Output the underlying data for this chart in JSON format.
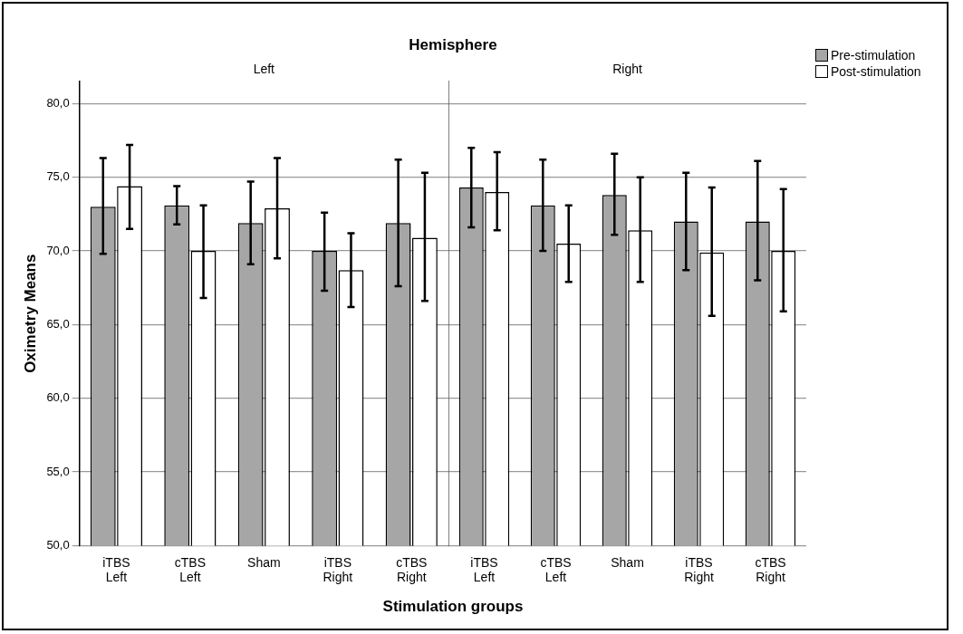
{
  "chart_data": [
    {
      "type": "bar",
      "title": "Hemisphere",
      "subtitle": "Left",
      "xlabel": "Stimulation groups",
      "ylabel": "Oximetry Means",
      "categories": [
        "iTBS Left",
        "cTBS Left",
        "Sham",
        "iTBS Right",
        "cTBS Right"
      ],
      "series": [
        {
          "color": "#a6a6a6",
          "values": [
            73.0,
            73.1,
            71.9,
            70.0,
            71.9
          ],
          "errors": [
            [
              69.8,
              76.3
            ],
            [
              71.8,
              74.4
            ],
            [
              69.1,
              74.7
            ],
            [
              67.3,
              72.6
            ],
            [
              67.6,
              76.2
            ]
          ]
        },
        {
          "color": "#ffffff",
          "values": [
            74.4,
            70.0,
            72.9,
            68.7,
            70.9
          ],
          "errors": [
            [
              71.5,
              77.2
            ],
            [
              66.8,
              73.1
            ],
            [
              69.5,
              76.3
            ],
            [
              66.2,
              71.2
            ],
            [
              66.6,
              75.3
            ]
          ]
        }
      ],
      "ylim": [
        50,
        81.5
      ],
      "yticks": [
        {
          "value": 50,
          "label": "50,0"
        },
        {
          "value": 55,
          "label": "55,0"
        },
        {
          "value": 60,
          "label": "60,0"
        },
        {
          "value": 65,
          "label": "65,0"
        },
        {
          "value": 70,
          "label": "70,0"
        },
        {
          "value": 75,
          "label": "75,0"
        },
        {
          "value": 80,
          "label": "80,0"
        }
      ],
      "grid": "y"
    },
    {
      "type": "bar",
      "subtitle": "Right",
      "categories": [
        "iTBS Left",
        "cTBS Left",
        "Sham",
        "iTBS Right",
        "cTBS Right"
      ],
      "series": [
        {
          "name": "Pre-stimulation",
          "color": "#a6a6a6",
          "values": [
            74.3,
            73.1,
            73.8,
            72.0,
            72.0
          ],
          "errors": [
            [
              71.6,
              77.0
            ],
            [
              70.0,
              76.2
            ],
            [
              71.1,
              76.6
            ],
            [
              68.7,
              75.3
            ],
            [
              68.0,
              76.1
            ]
          ]
        },
        {
          "name": "Post-stimulation",
          "color": "#ffffff",
          "values": [
            74.0,
            70.5,
            71.4,
            69.9,
            70.0
          ],
          "errors": [
            [
              71.4,
              76.7
            ],
            [
              67.9,
              73.1
            ],
            [
              67.9,
              75.0
            ],
            [
              65.6,
              74.3
            ],
            [
              65.9,
              74.2
            ]
          ]
        }
      ],
      "ylim": [
        50,
        81.5
      ],
      "yticks": [
        50,
        55,
        60,
        65,
        70,
        75,
        80
      ],
      "grid": "y",
      "tick_labels": "x",
      "legend": "top right"
    }
  ]
}
